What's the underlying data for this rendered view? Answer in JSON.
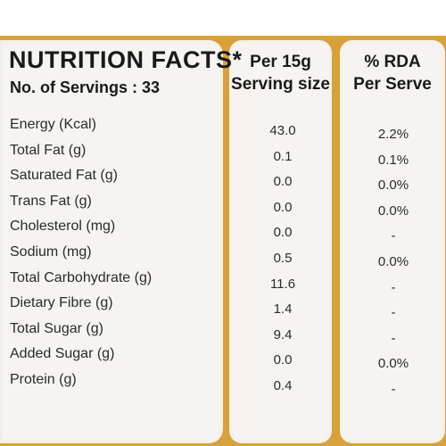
{
  "label": {
    "title": "NUTRITION FACTS*",
    "servings": "No. of Servings : 33",
    "col_per": [
      "Per 15g",
      "Serving size"
    ],
    "col_rda": [
      "% RDA",
      "Per Serve"
    ]
  },
  "rows": [
    {
      "name": "Energy (Kcal)",
      "per": "43.0",
      "rda": "2.2%"
    },
    {
      "name": "Total Fat (g)",
      "per": "0.1",
      "rda": "0.1%"
    },
    {
      "name": "Saturated Fat (g)",
      "per": "0.0",
      "rda": "0.0%"
    },
    {
      "name": "Trans Fat (g)",
      "per": "0.0",
      "rda": "0.0%"
    },
    {
      "name": "Cholesterol (mg)",
      "per": "0.0",
      "rda": "-"
    },
    {
      "name": "Sodium (mg)",
      "per": "0.5",
      "rda": "0.0%"
    },
    {
      "name": "Total Carbohydrate (g)",
      "per": "11.6",
      "rda": "-"
    },
    {
      "name": "Dietary Fibre (g)",
      "per": "1.4",
      "rda": "-"
    },
    {
      "name": "Total Sugar (g)",
      "per": "9.4",
      "rda": "-"
    },
    {
      "name": "Added Sugar (g)",
      "per": "0.0",
      "rda": "0.0%"
    },
    {
      "name": "Protein (g)",
      "per": "0.4",
      "rda": "-"
    }
  ],
  "colors": {
    "frame": "#d8a238",
    "panel": "#f6f4f1",
    "text": "#1a1a1a"
  }
}
